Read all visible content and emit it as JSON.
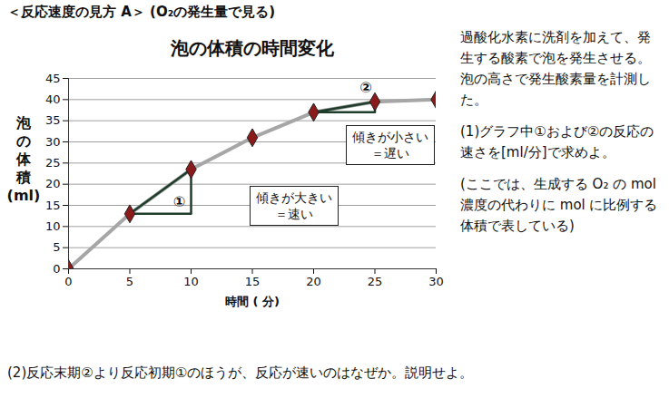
{
  "header": "＜反応速度の見方 A＞ (O₂の発生量で見る)",
  "chart_data": {
    "type": "line",
    "title": "泡の体積の時間変化",
    "x_label": "時間 ( 分)",
    "y_label": "泡の体積(ml)",
    "x": [
      0,
      5,
      10,
      15,
      20,
      25,
      30
    ],
    "values": [
      0,
      13,
      23.5,
      31,
      37,
      39.5,
      40
    ],
    "color": "#a6a6a6",
    "marker": "diamond",
    "xlim": [
      0,
      30
    ],
    "xticks": [
      0,
      5,
      10,
      15,
      20,
      25,
      30
    ],
    "ylim": [
      0,
      45
    ],
    "yticks": [
      0,
      5,
      10,
      15,
      20,
      25,
      30,
      35,
      40,
      45
    ],
    "grid": true,
    "annotations": [
      {
        "label": "①",
        "x": [
          5,
          10
        ],
        "text": [
          "傾きが大きい",
          "＝速い"
        ]
      },
      {
        "label": "②",
        "x": [
          20,
          25
        ],
        "text": [
          "傾きが小さい",
          "＝遅い"
        ]
      }
    ]
  },
  "description": [
    "過酸化水素に洗剤を加えて、発生する酸素で泡を発生させる。泡の高さで発生酸素量を計測した。",
    "(1)グラフ中①および②の反応の速さを[ml/分]で求めよ。",
    "(ここでは、生成する O₂ の mol 濃度の代わりに mol に比例する体積で表している)"
  ],
  "question": "(2)反応末期②より反応初期①のほうが、反応が速いのはなぜか。説明せよ。"
}
